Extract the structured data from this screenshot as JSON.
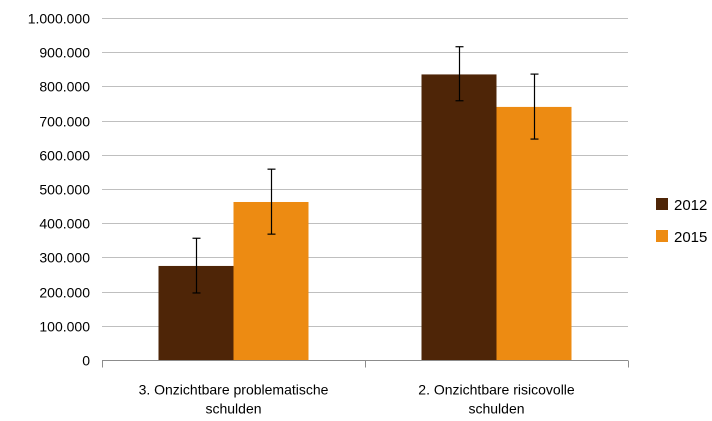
{
  "chart_data": {
    "type": "bar",
    "categories": [
      "3. Onzichtbare problematische schulden",
      "2. Onzichtbare risicovolle schulden"
    ],
    "category_lines": [
      [
        "3. Onzichtbare problematische",
        "schulden"
      ],
      [
        "2. Onzichtbare risicovolle",
        "schulden"
      ]
    ],
    "series": [
      {
        "name": "2012",
        "color": "#4e2507",
        "values": [
          275000,
          835000
        ],
        "error_low": [
          196000,
          758000
        ],
        "error_high": [
          356000,
          916000
        ]
      },
      {
        "name": "2015",
        "color": "#ed8b12",
        "values": [
          462000,
          740000
        ],
        "error_low": [
          368000,
          646000
        ],
        "error_high": [
          558000,
          836000
        ]
      }
    ],
    "ylim": [
      0,
      1000000
    ],
    "yticks": [
      0,
      100000,
      200000,
      300000,
      400000,
      500000,
      600000,
      700000,
      800000,
      900000,
      1000000
    ],
    "ytick_labels": [
      "0",
      "100.000",
      "200.000",
      "300.000",
      "400.000",
      "500.000",
      "600.000",
      "700.000",
      "800.000",
      "900.000",
      "1.000.000"
    ],
    "grid": true,
    "legend_position": "right",
    "title": "",
    "xlabel": "",
    "ylabel": ""
  }
}
